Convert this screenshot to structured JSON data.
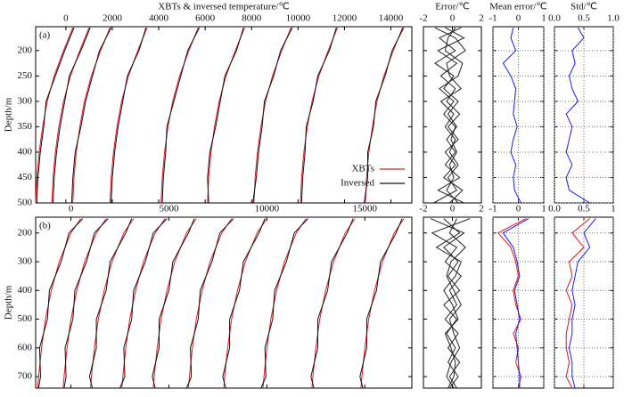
{
  "chart_data": [
    {
      "type": "profile",
      "title": "XBTs & inversed temperature/℃",
      "ylabel": "Depth/m",
      "panel_label": "(a)",
      "legend": "lower right",
      "grid": false,
      "xlim": [
        -1300,
        14900
      ],
      "ylim": [
        153,
        500
      ],
      "xticks": [
        0,
        2000,
        4000,
        6000,
        8000,
        10000,
        12000,
        14000
      ],
      "yticks": [
        200,
        250,
        300,
        350,
        400,
        450,
        500
      ],
      "depths": [
        155,
        200,
        250,
        300,
        350,
        400,
        450,
        500
      ],
      "series": [
        {
          "name": "XBTs",
          "color": "#e8141c",
          "profiles": [
            [
              300,
              -100,
              -500,
              -800,
              -1000,
              -1150,
              -1250,
              -1300
            ],
            [
              1000,
              600,
              200,
              -100,
              -300,
              -450,
              -550,
              -600
            ],
            [
              1900,
              1500,
              1100,
              800,
              600,
              450,
              350,
              300
            ],
            [
              3500,
              3100,
              2700,
              2400,
              2200,
              2050,
              1950,
              1900
            ],
            [
              5700,
              5300,
              4900,
              4600,
              4400,
              4250,
              4150,
              4100
            ],
            [
              7700,
              7300,
              6900,
              6600,
              6400,
              6250,
              6150,
              6100
            ],
            [
              9700,
              9300,
              8900,
              8600,
              8400,
              8250,
              8150,
              8100
            ],
            [
              11700,
              11300,
              10900,
              10600,
              10400,
              10250,
              10150,
              10100
            ],
            [
              14500,
              14100,
              13700,
              13400,
              13200,
              13050,
              12950,
              12900
            ]
          ]
        },
        {
          "name": "Inversed",
          "color": "#111111",
          "profiles": [
            [
              350,
              -50,
              -450,
              -850,
              -950,
              -1100,
              -1200,
              -1250
            ],
            [
              1050,
              650,
              150,
              -50,
              -250,
              -400,
              -500,
              -550
            ],
            [
              1950,
              1450,
              1150,
              850,
              650,
              400,
              300,
              250
            ],
            [
              3450,
              3150,
              2650,
              2450,
              2250,
              2100,
              2000,
              1950
            ],
            [
              5750,
              5250,
              4950,
              4650,
              4350,
              4300,
              4200,
              4150
            ],
            [
              7650,
              7350,
              6850,
              6650,
              6450,
              6200,
              6100,
              6150
            ],
            [
              9750,
              9250,
              8950,
              8550,
              8450,
              8300,
              8200,
              8050
            ],
            [
              11650,
              11350,
              10850,
              10650,
              10350,
              10300,
              10200,
              10150
            ],
            [
              14550,
              14050,
              13750,
              13350,
              13250,
              13000,
              13000,
              12850
            ]
          ]
        }
      ]
    },
    {
      "type": "profile",
      "title": "Error/℃",
      "grid": false,
      "xlim": [
        -2,
        2
      ],
      "ylim": [
        153,
        500
      ],
      "xticks": [
        -2,
        0,
        2
      ],
      "yticks": [
        200,
        250,
        300,
        350,
        400,
        450,
        500
      ],
      "depths": [
        155,
        175,
        200,
        225,
        250,
        275,
        300,
        325,
        350,
        375,
        400,
        425,
        450,
        475,
        500
      ],
      "series": [
        {
          "color": "#222222",
          "profiles": [
            [
              -0.5,
              0.8,
              -1.0,
              0.3,
              -0.8,
              0.2,
              -0.4,
              0.5,
              -0.3,
              0.4,
              -0.5,
              0.2,
              -0.6,
              0.7,
              -0.2
            ],
            [
              0.6,
              -0.9,
              0.2,
              -1.2,
              0.1,
              -0.6,
              0.4,
              -0.3,
              0.3,
              -0.4,
              0.2,
              -0.5,
              0.5,
              -1.0,
              0.8
            ],
            [
              -1.2,
              0.2,
              0.9,
              -0.4,
              -0.2,
              0.6,
              -0.8,
              0.1,
              -0.5,
              0.2,
              -0.2,
              0.4,
              -0.3,
              0.3,
              -1.3
            ],
            [
              0.2,
              -0.3,
              -0.5,
              0.7,
              0.4,
              -0.9,
              0.1,
              -0.6,
              0.2,
              -0.1,
              0.3,
              -0.2,
              0.1,
              -0.4,
              0.4
            ]
          ]
        }
      ]
    },
    {
      "type": "profile",
      "title": "Mean error/℃",
      "grid": true,
      "xlim": [
        -1,
        1
      ],
      "ylim": [
        153,
        500
      ],
      "xticks": [
        -1,
        0,
        1
      ],
      "yticks": [
        200,
        250,
        300,
        350,
        400,
        450,
        500
      ],
      "depths": [
        155,
        175,
        200,
        225,
        250,
        275,
        300,
        325,
        350,
        375,
        400,
        425,
        450,
        475,
        500
      ],
      "series": [
        {
          "color": "#1a1aff",
          "values": [
            -0.2,
            -0.3,
            -0.1,
            -0.6,
            -0.3,
            -0.1,
            -0.15,
            -0.2,
            -0.05,
            -0.2,
            -0.3,
            -0.1,
            -0.2,
            -0.15,
            0.1
          ]
        }
      ]
    },
    {
      "type": "profile",
      "title": "Std/℃",
      "grid": true,
      "xlim": [
        0,
        1
      ],
      "ylim": [
        153,
        500
      ],
      "xticks": [
        {
          "value": 0,
          "label": "0.0"
        },
        0.5,
        {
          "value": 1,
          "label": "1.0"
        }
      ],
      "yticks": [
        200,
        250,
        300,
        350,
        400,
        450,
        500
      ],
      "depths": [
        155,
        175,
        200,
        225,
        250,
        275,
        300,
        325,
        350,
        375,
        400,
        425,
        450,
        475,
        500
      ],
      "series": [
        {
          "color": "#1a1aff",
          "values": [
            0.4,
            0.5,
            0.3,
            0.35,
            0.25,
            0.3,
            0.4,
            0.2,
            0.3,
            0.25,
            0.2,
            0.3,
            0.2,
            0.25,
            0.6
          ]
        }
      ]
    },
    {
      "type": "profile",
      "ylabel": "Depth/m",
      "panel_label": "(b)",
      "grid": false,
      "xlim": [
        -1800,
        17400
      ],
      "ylim": [
        145,
        740
      ],
      "xticks": [
        0,
        5000,
        10000,
        15000
      ],
      "yticks": [
        200,
        300,
        400,
        500,
        600,
        700
      ],
      "depths": [
        150,
        200,
        300,
        400,
        500,
        600,
        700,
        740
      ],
      "series": [
        {
          "color": "#e8141c",
          "profiles": [
            [
              500,
              0,
              -600,
              -1000,
              -1300,
              -1500,
              -1650,
              -1700
            ],
            [
              1800,
              1300,
              700,
              300,
              0,
              -200,
              -350,
              -400
            ],
            [
              3200,
              2700,
              2100,
              1700,
              1400,
              1200,
              1050,
              1000
            ],
            [
              4800,
              4300,
              3700,
              3300,
              3000,
              2800,
              2650,
              2600
            ],
            [
              6400,
              5900,
              5300,
              4900,
              4600,
              4400,
              4250,
              4200
            ],
            [
              8200,
              7700,
              7100,
              6700,
              6400,
              6200,
              6050,
              6000
            ],
            [
              10000,
              9500,
              8900,
              8500,
              8200,
              8000,
              7850,
              7800
            ],
            [
              12000,
              11500,
              10900,
              10500,
              10200,
              10000,
              9850,
              9800
            ],
            [
              14500,
              14000,
              13400,
              13000,
              12700,
              12500,
              12350,
              12300
            ],
            [
              17000,
              16500,
              15900,
              15500,
              15200,
              15000,
              14850,
              14800
            ]
          ]
        },
        {
          "color": "#111111",
          "profiles": [
            [
              600,
              -100,
              -500,
              -1100,
              -1200,
              -1600,
              -1550,
              -1650
            ],
            [
              1900,
              1200,
              800,
              200,
              100,
              -300,
              -250,
              -350
            ],
            [
              3100,
              2800,
              2000,
              1800,
              1300,
              1300,
              950,
              1100
            ],
            [
              4900,
              4200,
              3800,
              3200,
              3100,
              2700,
              2750,
              2500
            ],
            [
              6300,
              6000,
              5200,
              5000,
              4500,
              4500,
              4150,
              4300
            ],
            [
              8300,
              7600,
              7200,
              6600,
              6500,
              6100,
              6150,
              5900
            ],
            [
              9900,
              9600,
              8800,
              8600,
              8100,
              8100,
              7750,
              7900
            ],
            [
              12100,
              11400,
              11000,
              10400,
              10300,
              9900,
              9950,
              9700
            ],
            [
              14400,
              14100,
              13300,
              13100,
              12600,
              12600,
              12250,
              12400
            ],
            [
              16900,
              16600,
              15800,
              15600,
              15100,
              15100,
              14750,
              14900
            ]
          ]
        }
      ]
    },
    {
      "type": "profile",
      "grid": false,
      "xlim": [
        -2,
        2
      ],
      "ylim": [
        145,
        740
      ],
      "xticks": [
        -2,
        0,
        2
      ],
      "yticks": [
        200,
        300,
        400,
        500,
        600,
        700
      ],
      "depths": [
        150,
        200,
        250,
        300,
        350,
        400,
        450,
        500,
        550,
        600,
        650,
        700,
        740
      ],
      "series": [
        {
          "color": "#222222",
          "profiles": [
            [
              -1.5,
              0.8,
              -0.6,
              0.4,
              -0.3,
              0.5,
              -0.6,
              0.3,
              -0.4,
              0.2,
              -0.3,
              0.4,
              -0.2
            ],
            [
              1.2,
              -1.4,
              0.3,
              -0.5,
              0.6,
              -0.2,
              0.3,
              -0.5,
              0.4,
              -0.3,
              0.5,
              -0.2,
              0.3
            ],
            [
              0.3,
              -0.2,
              0.9,
              -0.1,
              -0.4,
              0.1,
              0.6,
              -0.2,
              0.1,
              0.5,
              -0.1,
              -0.4,
              0.1
            ],
            [
              -0.6,
              0.5,
              -1.1,
              0.6,
              0.2,
              -0.6,
              0.0,
              0.4,
              -0.5,
              -0.1,
              0.2,
              0.1,
              -0.3
            ]
          ]
        }
      ]
    },
    {
      "type": "profile",
      "grid": true,
      "xlim": [
        -1,
        1
      ],
      "ylim": [
        145,
        740
      ],
      "xticks": [
        -1,
        0,
        1
      ],
      "yticks": [
        200,
        300,
        400,
        500,
        600,
        700
      ],
      "depths": [
        150,
        200,
        250,
        300,
        350,
        400,
        450,
        500,
        550,
        600,
        650,
        700,
        740
      ],
      "series": [
        {
          "color": "#e8141c",
          "values": [
            0.3,
            -0.8,
            -0.3,
            -0.1,
            0,
            -0.2,
            -0.1,
            0.1,
            -0.2,
            0,
            -0.1,
            0.1,
            0
          ]
        },
        {
          "color": "#1a1aff",
          "values": [
            0.4,
            -0.6,
            -0.2,
            -0.05,
            0.05,
            -0.15,
            -0.05,
            0.05,
            -0.1,
            -0.05,
            0,
            0.05,
            0.05
          ]
        }
      ]
    },
    {
      "type": "profile",
      "grid": true,
      "xlim": [
        0,
        1
      ],
      "ylim": [
        145,
        740
      ],
      "xticks": [
        {
          "value": 0,
          "label": "0.0"
        },
        0.5,
        1
      ],
      "yticks": [
        200,
        300,
        400,
        500,
        600,
        700
      ],
      "depths": [
        150,
        200,
        250,
        300,
        350,
        400,
        450,
        500,
        550,
        600,
        650,
        700,
        740
      ],
      "series": [
        {
          "color": "#e8141c",
          "values": [
            0.6,
            0.3,
            0.5,
            0.25,
            0.3,
            0.2,
            0.3,
            0.25,
            0.2,
            0.2,
            0.25,
            0.2,
            0.3
          ]
        },
        {
          "color": "#1a1aff",
          "values": [
            0.7,
            0.5,
            0.6,
            0.4,
            0.35,
            0.3,
            0.35,
            0.3,
            0.3,
            0.25,
            0.3,
            0.3,
            0.35
          ]
        }
      ]
    }
  ]
}
